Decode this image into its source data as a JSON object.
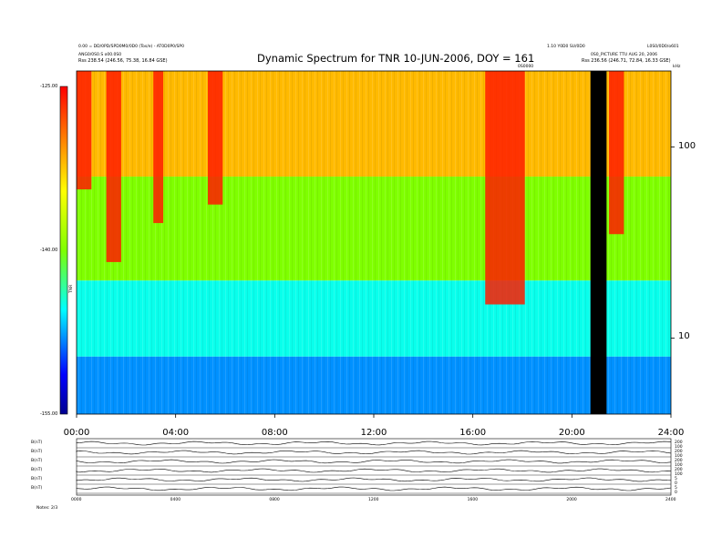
{
  "header": {
    "left_line1": "0.00 = DD/0PD/SPD0M0/0D0 (Tos/e) - AT0D0P0/SP0",
    "left_line2": "ANG0/0S0.S o00.0S0",
    "left_line3": "Rss 238.54 (246.56, 75.38, 16.84 GSE)",
    "right_line1": "1.10 Y0D0 SU/0D0",
    "right_line2": "0S0_PICTURE TTU AUG 20, 2006",
    "right_line3": "Rss 236.56 (246.71, 72.84, 16.33 GSE)",
    "far_right": "L0S0/0D0/o601",
    "event_label": "0S0000",
    "hz_label": "kHz"
  },
  "chart_data": {
    "type": "heatmap",
    "title": "Dynamic Spectrum for TNR 10-JUN-2006, DOY = 161",
    "xlabel": "",
    "ylabel": "",
    "x_range_hours": [
      0,
      24
    ],
    "x_ticks": [
      "00:00",
      "04:00",
      "08:00",
      "12:00",
      "16:00",
      "20:00",
      "24:00"
    ],
    "y_scale": "log",
    "y_range_khz": [
      4,
      250
    ],
    "y_ticks": [
      "100",
      "10"
    ],
    "colorbar_label": "TNR",
    "colorbar_ticks": [
      "-125.00",
      "-140.00",
      "-155.00"
    ],
    "colorbar_range": [
      -155,
      -125
    ],
    "data_gap_hours": [
      20.75,
      21.4
    ],
    "intense_bursts": [
      {
        "start": 0.0,
        "end": 0.6,
        "low_khz": 60
      },
      {
        "start": 1.2,
        "end": 1.8,
        "low_khz": 25
      },
      {
        "start": 3.1,
        "end": 3.5,
        "low_khz": 40
      },
      {
        "start": 5.3,
        "end": 5.9,
        "low_khz": 50
      },
      {
        "start": 16.5,
        "end": 18.1,
        "low_khz": 15
      },
      {
        "start": 21.5,
        "end": 22.1,
        "low_khz": 35
      }
    ],
    "bands": [
      {
        "name": "high",
        "from_khz": 70,
        "to_khz": 250,
        "level": -132
      },
      {
        "name": "mid",
        "from_khz": 20,
        "to_khz": 70,
        "level": -140
      },
      {
        "name": "low",
        "from_khz": 8,
        "to_khz": 20,
        "level": -145
      },
      {
        "name": "floor",
        "from_khz": 4,
        "to_khz": 8,
        "level": -148
      }
    ]
  },
  "lower_panels": {
    "left_labels": [
      "B(nT)",
      "B(nT)",
      "B(nT)",
      "B(nT)",
      "B(nT)",
      "B(nT)"
    ],
    "right_labels": [
      "200",
      "100",
      "200",
      "100",
      "200",
      "100",
      "200",
      "100",
      "5",
      "0",
      "5",
      "0"
    ],
    "bottom_ticks": [
      "0000",
      "0400",
      "0800",
      "1200",
      "1600",
      "2000",
      "2400"
    ],
    "bottom_left": "Notes: 2/3"
  }
}
